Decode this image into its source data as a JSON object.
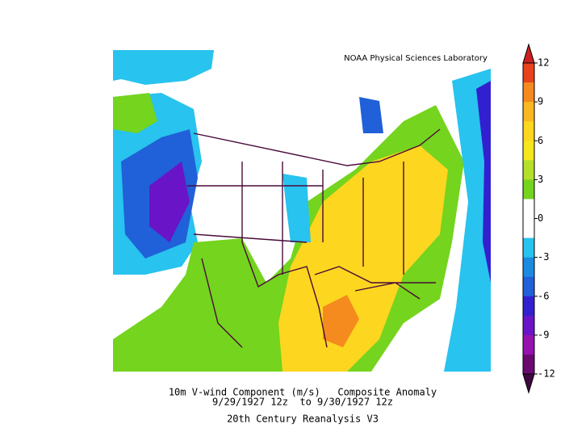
{
  "map": {
    "credit": "NOAA Physical Sciences Laboratory",
    "title": "10m V-wind Component (m/s)   Composite Anomaly",
    "dates": "9/29/1927 12z  to 9/30/1927 12z",
    "source": "20th Century Reanalysis V3",
    "colorbar": {
      "ticks": [
        12,
        9,
        6,
        3,
        0,
        -3,
        -6,
        -9,
        -12
      ],
      "colors": [
        "#e7421b",
        "#f58a1e",
        "#f9b81f",
        "#fcd61f",
        "#f5e61f",
        "#b4e02a",
        "#74d41e",
        "#ffffff",
        "#ffffff",
        "#28c3ee",
        "#1c8ae0",
        "#2060d8",
        "#3220d0",
        "#6a14c8",
        "#9612b0",
        "#6a0a70"
      ],
      "over_color": "#cc2020",
      "under_color": "#400840"
    }
  }
}
